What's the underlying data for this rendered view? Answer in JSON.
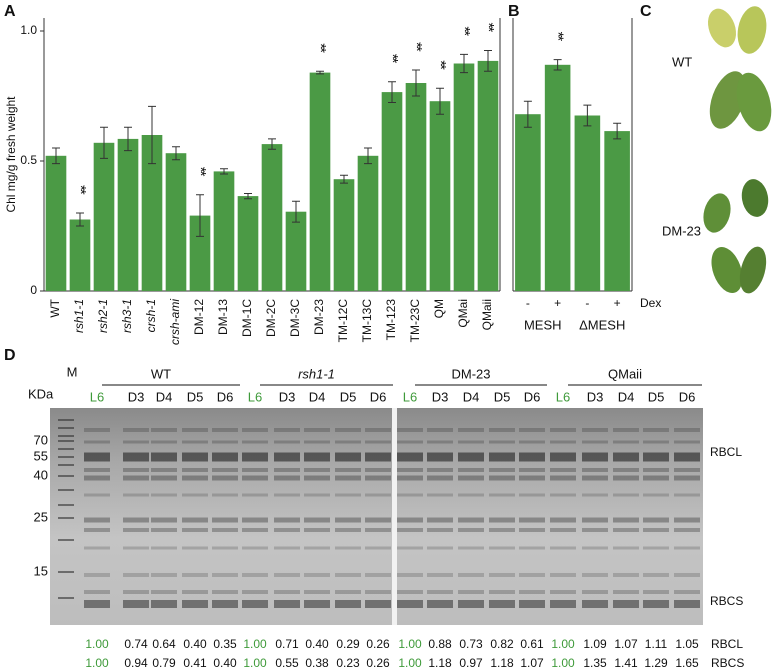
{
  "panel_letters": [
    "A",
    "B",
    "C",
    "D"
  ],
  "chart_data": [
    {
      "type": "bar",
      "y_label": "Chl mg/g fresh weight",
      "categories": [
        "WT",
        "rsh1-1",
        "rsh2-1",
        "rsh3-1",
        "crsh-1",
        "crsh-ami",
        "DM-12",
        "DM-13",
        "DM-1C",
        "DM-2C",
        "DM-3C",
        "DM-23",
        "TM-12C",
        "TM-13C",
        "TM-123",
        "TM-23C",
        "QM",
        "QMai",
        "QMaii"
      ],
      "values": [
        0.52,
        0.275,
        0.57,
        0.585,
        0.6,
        0.53,
        0.29,
        0.46,
        0.365,
        0.565,
        0.305,
        0.84,
        0.43,
        0.52,
        0.765,
        0.8,
        0.73,
        0.875,
        0.885
      ],
      "error": [
        0.03,
        0.025,
        0.06,
        0.045,
        0.11,
        0.025,
        0.08,
        0.01,
        0.01,
        0.02,
        0.04,
        0.005,
        0.015,
        0.03,
        0.04,
        0.05,
        0.05,
        0.035,
        0.04
      ],
      "significance": [
        null,
        "**",
        null,
        null,
        null,
        null,
        "**",
        null,
        null,
        null,
        null,
        "**",
        null,
        null,
        "**",
        "**",
        "**",
        "**",
        "**"
      ],
      "color": "#4b9a45",
      "ylim": [
        0,
        1.05
      ],
      "yticks": [
        0,
        0.5,
        {
          "value": 1,
          "label": "1.0"
        }
      ]
    },
    {
      "type": "bar",
      "x_label": "Dex",
      "group_labels": [
        "MESH",
        "ΔMESH"
      ],
      "categories": [
        "-",
        "+",
        "-",
        "+"
      ],
      "values": [
        0.68,
        0.87,
        0.675,
        0.615
      ],
      "error": [
        0.05,
        0.02,
        0.04,
        0.03
      ],
      "significance": [
        null,
        "**",
        null,
        null
      ],
      "color": "#4b9a45",
      "ylim": [
        0,
        1.05
      ]
    }
  ],
  "leaves": {
    "labels": [
      "WT",
      "DM-23"
    ]
  },
  "gel": {
    "unit": "KDa",
    "marker_lane": "M",
    "markers": [
      "70",
      "55",
      "40",
      "25",
      "15"
    ],
    "band_labels": [
      "RBCL",
      "RBCS"
    ],
    "row_labels": [
      "RBCL",
      "RBCS"
    ],
    "groups": [
      {
        "name": "WT",
        "lanes": [
          "L6",
          "D3",
          "D4",
          "D5",
          "D6"
        ],
        "rbcl": [
          "1.00",
          "0.74",
          "0.64",
          "0.40",
          "0.35"
        ],
        "rbcs": [
          "1.00",
          "0.94",
          "0.79",
          "0.41",
          "0.40"
        ]
      },
      {
        "name": "rsh1-1",
        "lanes": [
          "L6",
          "D3",
          "D4",
          "D5",
          "D6"
        ],
        "rbcl": [
          "1.00",
          "0.71",
          "0.40",
          "0.29",
          "0.26"
        ],
        "rbcs": [
          "1.00",
          "0.55",
          "0.38",
          "0.23",
          "0.26"
        ]
      },
      {
        "name": "DM-23",
        "lanes": [
          "L6",
          "D3",
          "D4",
          "D5",
          "D6"
        ],
        "rbcl": [
          "1.00",
          "0.88",
          "0.73",
          "0.82",
          "0.61"
        ],
        "rbcs": [
          "1.00",
          "1.18",
          "0.97",
          "1.18",
          "1.07"
        ]
      },
      {
        "name": "QMaii",
        "lanes": [
          "L6",
          "D3",
          "D4",
          "D5",
          "D6"
        ],
        "rbcl": [
          "1.00",
          "1.09",
          "1.07",
          "1.11",
          "1.05"
        ],
        "rbcs": [
          "1.00",
          "1.35",
          "1.41",
          "1.29",
          "1.65"
        ]
      }
    ]
  }
}
